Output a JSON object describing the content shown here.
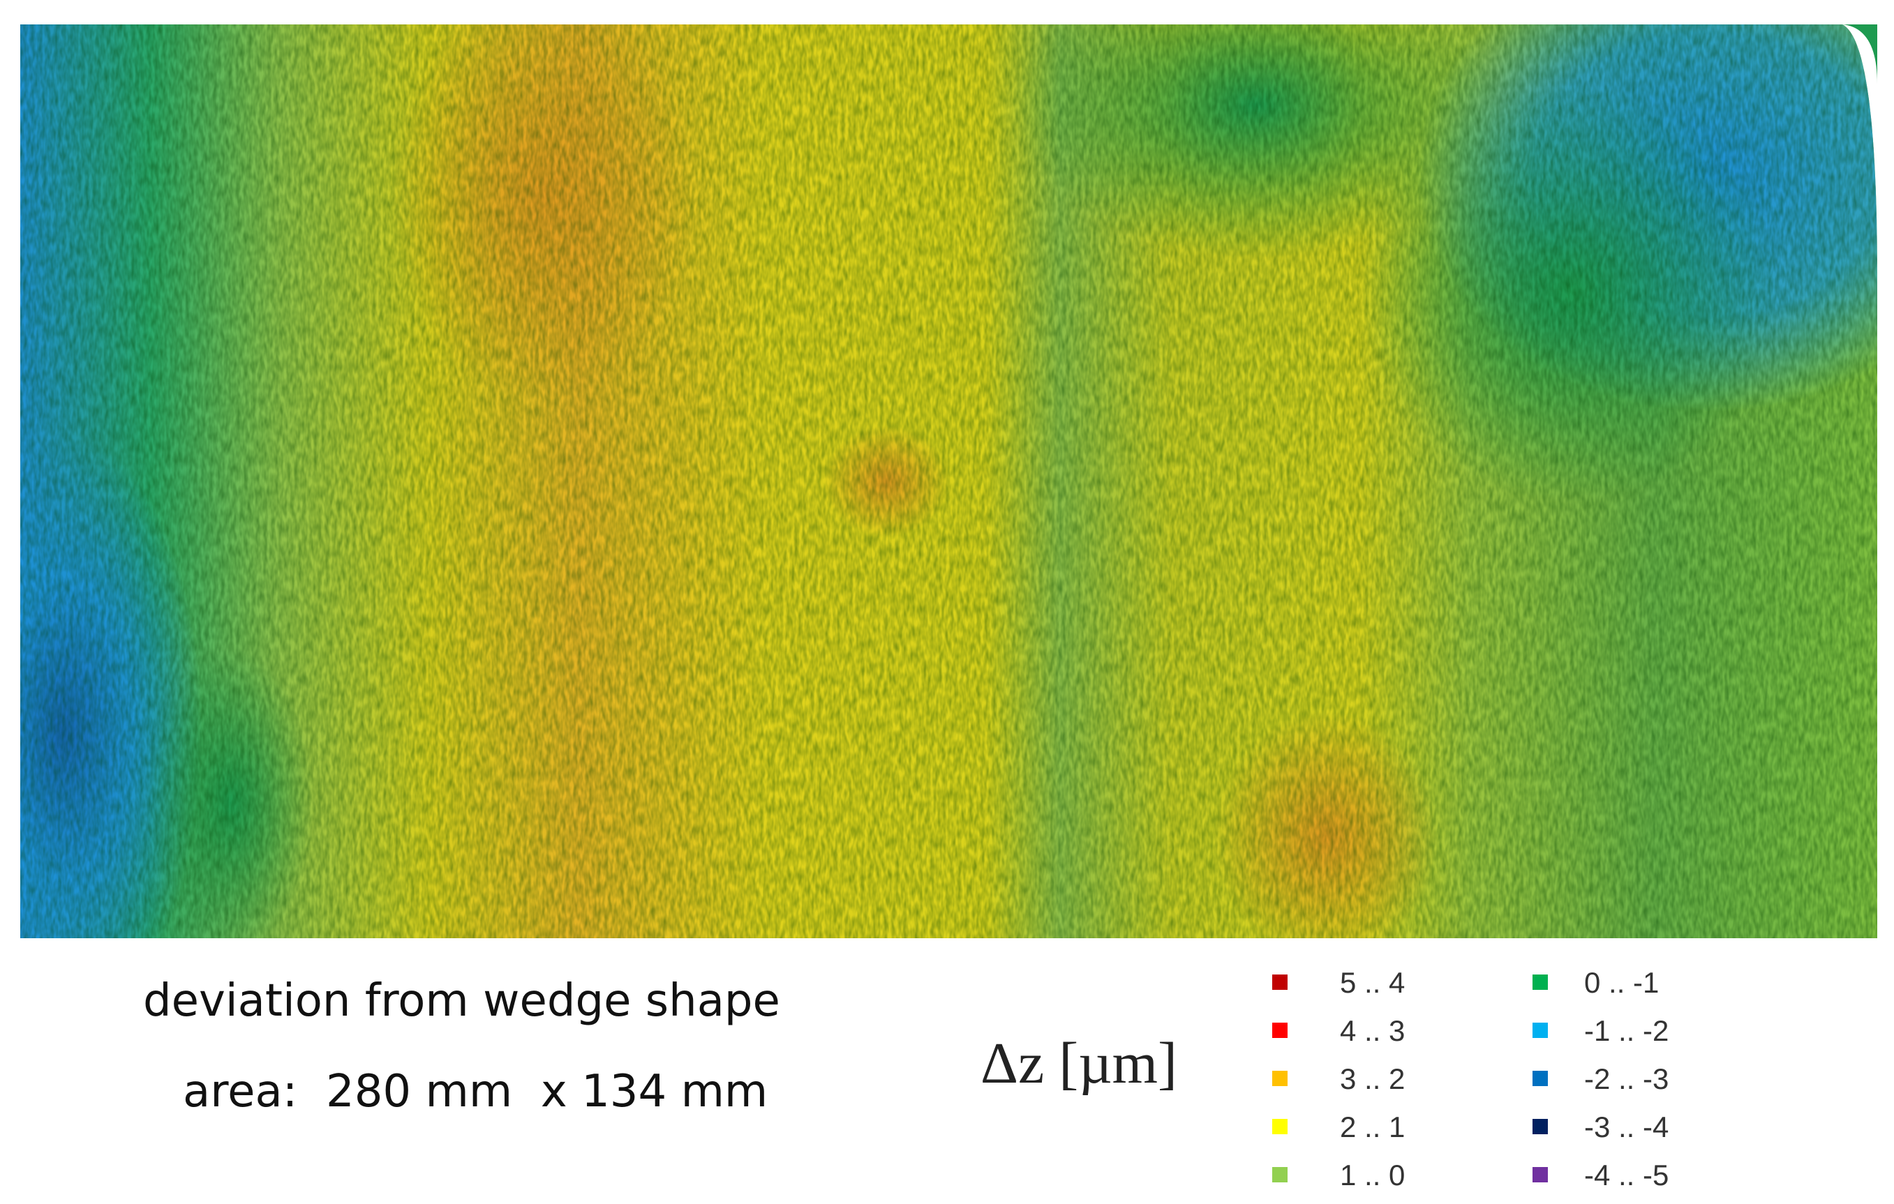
{
  "caption": {
    "title": "deviation from wedge shape",
    "area": "area:  280 mm  x 134 mm"
  },
  "legend": {
    "title": "Δz [µm]",
    "items": [
      {
        "label": "5 .. 4",
        "color": "#c00000"
      },
      {
        "label": "4 .. 3",
        "color": "#ff0000"
      },
      {
        "label": "3 .. 2",
        "color": "#ffc000"
      },
      {
        "label": "2 .. 1",
        "color": "#ffff00"
      },
      {
        "label": "1 .. 0",
        "color": "#92d050"
      },
      {
        "label": "0 .. -1",
        "color": "#00b050"
      },
      {
        "label": "-1 .. -2",
        "color": "#00b0f0"
      },
      {
        "label": "-2 .. -3",
        "color": "#0070c0"
      },
      {
        "label": "-3 .. -4",
        "color": "#002060"
      },
      {
        "label": "-4 .. -5",
        "color": "#7030a0"
      }
    ]
  }
}
